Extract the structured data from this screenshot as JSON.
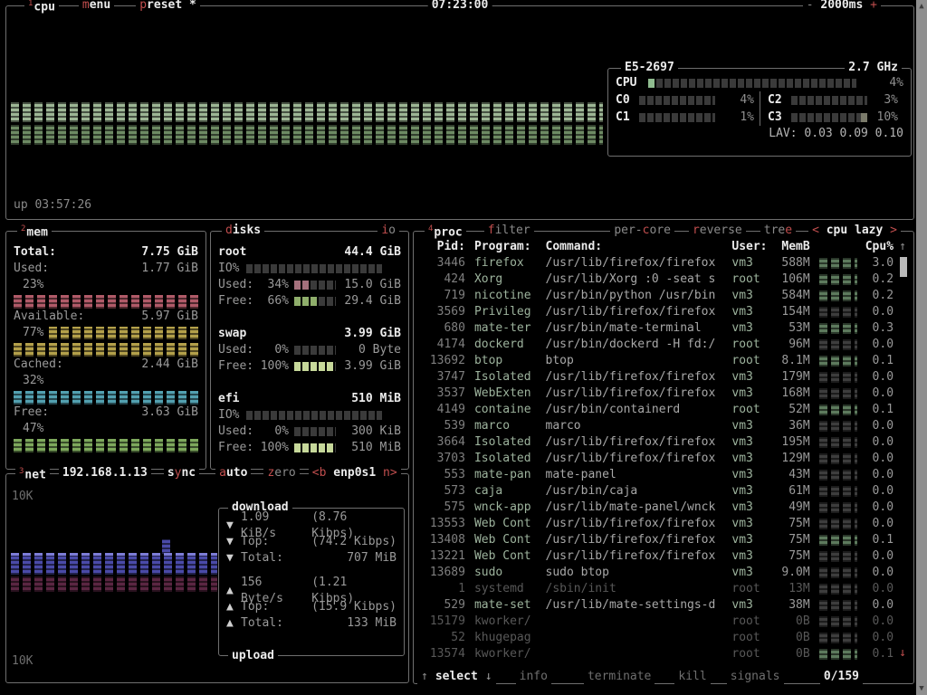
{
  "colors": {
    "bg": "#000000",
    "border": "#6f6f6f",
    "accent": "#c14e4e",
    "graph_green_light": "#9db695",
    "graph_green_dark": "#6d8a63",
    "mem_used": "#b05a68",
    "mem_available": "#b3a04a",
    "mem_cached": "#52a0b0",
    "mem_free": "#7da85c",
    "net_download": "#4a4aa8",
    "net_upload": "#5a2642",
    "disk_used": "#a4707c",
    "disk_free": "#8fae6b"
  },
  "cpu_box": {
    "tab_num": "1",
    "title": "cpu",
    "menu": {
      "hot": "m",
      "rest": "enu"
    },
    "preset": {
      "hot": "p",
      "rest": "reset",
      "star": "*"
    },
    "clock": "07:23:00",
    "interval": {
      "minus": "-",
      "value": "2000ms",
      "plus": "+"
    },
    "uptime": "up 03:57:26",
    "info": {
      "model": "E5-2697",
      "freq": "2.7 GHz",
      "total": {
        "label": "CPU",
        "pct": "4%"
      },
      "cores": [
        {
          "label": "C0",
          "pct": "4%",
          "rcol": false,
          "hl": false
        },
        {
          "label": "C2",
          "pct": "3%",
          "rcol": true,
          "hl": false
        },
        {
          "label": "C1",
          "pct": "1%",
          "rcol": false,
          "hl": false
        },
        {
          "label": "C3",
          "pct": "10%",
          "rcol": true,
          "hl": true
        }
      ],
      "lav": "LAV: 0.03 0.09 0.10"
    }
  },
  "mem_box": {
    "tab_num": "2",
    "title": "mem",
    "rows": [
      {
        "label": "Total:",
        "value": "7.75 GiB",
        "bold": true
      },
      {
        "label": "Used:",
        "value": "1.77 GiB",
        "pct": "23%",
        "color": "#b05a68",
        "inline_dots": false
      },
      {
        "label": "Available:",
        "value": "5.97 GiB",
        "pct": "77%",
        "color": "#b3a04a",
        "inline_dots": true
      },
      {
        "label": "Cached:",
        "value": "2.44 GiB",
        "pct": "32%",
        "color": "#52a0b0",
        "inline_dots": false
      },
      {
        "label": "Free:",
        "value": "3.63 GiB",
        "pct": "47%",
        "color": "#7da85c",
        "inline_dots": false
      }
    ]
  },
  "disks_box": {
    "title_hot": "d",
    "title_rest": "isks",
    "io_hot": "i",
    "io_rest": "o",
    "io_label": "IO%",
    "disks": [
      {
        "name": "root",
        "size": "44.4 GiB",
        "io": true,
        "used": {
          "label": "Used:",
          "pct": "34%",
          "value": "15.0 GiB",
          "fill": 2,
          "full": false
        },
        "free": {
          "label": "Free:",
          "pct": "66%",
          "value": "29.4 GiB",
          "fill": 3,
          "full": false
        }
      },
      {
        "name": "swap",
        "size": "3.99 GiB",
        "io": false,
        "used": {
          "label": "Used:",
          "pct": "0%",
          "value": "0 Byte",
          "fill": 0,
          "full": false
        },
        "free": {
          "label": "Free:",
          "pct": "100%",
          "value": "3.99 GiB",
          "fill": 5,
          "full": true
        }
      },
      {
        "name": "efi",
        "size": "510 MiB",
        "io": true,
        "used": {
          "label": "Used:",
          "pct": "0%",
          "value": "300 KiB",
          "fill": 0,
          "full": false
        },
        "free": {
          "label": "Free:",
          "pct": "100%",
          "value": "510 MiB",
          "fill": 5,
          "full": true
        }
      }
    ]
  },
  "net_box": {
    "tab_num": "3",
    "title": "net",
    "ip": "192.168.1.13",
    "sync": {
      "pre": "s",
      "hot": "y",
      "post": "nc"
    },
    "auto": {
      "hot": "a",
      "rest": "uto"
    },
    "zero": {
      "hot": "z",
      "rest": "ero"
    },
    "iface": {
      "left": "<b",
      "name": "enp0s1",
      "right": "n>"
    },
    "scale_top": "10K",
    "scale_bottom": "10K",
    "download": {
      "title": "download",
      "arrow": "▼",
      "speed": "1.09 KiB/s",
      "rate": "(8.76 Kibps)",
      "top_label": "Top:",
      "top": "(74.2 Kibps)",
      "total_label": "Total:",
      "total": "707 MiB"
    },
    "upload": {
      "title": "upload",
      "arrow": "▲",
      "speed": "156 Byte/s",
      "rate": "(1.21 Kibps)",
      "top_label": "Top:",
      "top": "(15.9 Kibps)",
      "total_label": "Total:",
      "total": "133 MiB"
    }
  },
  "proc_box": {
    "tab_num": "4",
    "title": "proc",
    "filter": {
      "hot": "f",
      "rest": "ilter"
    },
    "per_core": {
      "pre": "per-",
      "hot": "c",
      "post": "ore"
    },
    "reverse": {
      "hot": "r",
      "rest": "everse"
    },
    "tree": {
      "pre": "tre",
      "hot": "e"
    },
    "sort": {
      "left": "<",
      "label": "cpu lazy",
      "right": ">"
    },
    "headers": {
      "pid": "Pid:",
      "program": "Program:",
      "command": "Command:",
      "user": "User:",
      "mem": "MemB",
      "cpu": "Cpu%"
    },
    "scroll_up": "↑",
    "scroll_down": "↓",
    "rows": [
      {
        "pid": "3446",
        "program": "firefox",
        "command": "/usr/lib/firefox/firefox",
        "user": "vm3",
        "mem": "588M",
        "cpu": "3.0",
        "dim": false
      },
      {
        "pid": "424",
        "program": "Xorg",
        "command": "/usr/lib/Xorg :0 -seat s",
        "user": "root",
        "mem": "106M",
        "cpu": "0.2",
        "dim": false
      },
      {
        "pid": "719",
        "program": "nicotine",
        "command": "/usr/bin/python /usr/bin",
        "user": "vm3",
        "mem": "584M",
        "cpu": "0.2",
        "dim": false
      },
      {
        "pid": "3569",
        "program": "Privileg",
        "command": "/usr/lib/firefox/firefox",
        "user": "vm3",
        "mem": "154M",
        "cpu": "0.0",
        "dim": false
      },
      {
        "pid": "680",
        "program": "mate-ter",
        "command": "/usr/bin/mate-terminal",
        "user": "vm3",
        "mem": "53M",
        "cpu": "0.3",
        "dim": false
      },
      {
        "pid": "4174",
        "program": "dockerd",
        "command": "/usr/bin/dockerd -H fd:/",
        "user": "root",
        "mem": "96M",
        "cpu": "0.0",
        "dim": false
      },
      {
        "pid": "13692",
        "program": "btop",
        "command": "btop",
        "user": "root",
        "mem": "8.1M",
        "cpu": "0.1",
        "dim": false
      },
      {
        "pid": "3747",
        "program": "Isolated",
        "command": "/usr/lib/firefox/firefox",
        "user": "vm3",
        "mem": "179M",
        "cpu": "0.0",
        "dim": false
      },
      {
        "pid": "3537",
        "program": "WebExten",
        "command": "/usr/lib/firefox/firefox",
        "user": "vm3",
        "mem": "168M",
        "cpu": "0.0",
        "dim": false
      },
      {
        "pid": "4149",
        "program": "containe",
        "command": "/usr/bin/containerd",
        "user": "root",
        "mem": "52M",
        "cpu": "0.1",
        "dim": false
      },
      {
        "pid": "539",
        "program": "marco",
        "command": "marco",
        "user": "vm3",
        "mem": "36M",
        "cpu": "0.0",
        "dim": false
      },
      {
        "pid": "3664",
        "program": "Isolated",
        "command": "/usr/lib/firefox/firefox",
        "user": "vm3",
        "mem": "195M",
        "cpu": "0.0",
        "dim": false
      },
      {
        "pid": "3703",
        "program": "Isolated",
        "command": "/usr/lib/firefox/firefox",
        "user": "vm3",
        "mem": "129M",
        "cpu": "0.0",
        "dim": false
      },
      {
        "pid": "553",
        "program": "mate-pan",
        "command": "mate-panel",
        "user": "vm3",
        "mem": "43M",
        "cpu": "0.0",
        "dim": false
      },
      {
        "pid": "573",
        "program": "caja",
        "command": "/usr/bin/caja",
        "user": "vm3",
        "mem": "61M",
        "cpu": "0.0",
        "dim": false
      },
      {
        "pid": "575",
        "program": "wnck-app",
        "command": "/usr/lib/mate-panel/wnck",
        "user": "vm3",
        "mem": "49M",
        "cpu": "0.0",
        "dim": false
      },
      {
        "pid": "13553",
        "program": "Web Cont",
        "command": "/usr/lib/firefox/firefox",
        "user": "vm3",
        "mem": "75M",
        "cpu": "0.0",
        "dim": false
      },
      {
        "pid": "13408",
        "program": "Web Cont",
        "command": "/usr/lib/firefox/firefox",
        "user": "vm3",
        "mem": "75M",
        "cpu": "0.1",
        "dim": false
      },
      {
        "pid": "13221",
        "program": "Web Cont",
        "command": "/usr/lib/firefox/firefox",
        "user": "vm3",
        "mem": "75M",
        "cpu": "0.0",
        "dim": false
      },
      {
        "pid": "13689",
        "program": "sudo",
        "command": "sudo btop",
        "user": "vm3",
        "mem": "9.0M",
        "cpu": "0.0",
        "dim": false
      },
      {
        "pid": "1",
        "program": "systemd",
        "command": "/sbin/init",
        "user": "root",
        "mem": "13M",
        "cpu": "0.0",
        "dim": true
      },
      {
        "pid": "529",
        "program": "mate-set",
        "command": "/usr/lib/mate-settings-d",
        "user": "vm3",
        "mem": "38M",
        "cpu": "0.0",
        "dim": false
      },
      {
        "pid": "15179",
        "program": "kworker/",
        "command": "",
        "user": "root",
        "mem": "0B",
        "cpu": "0.0",
        "dim": true
      },
      {
        "pid": "52",
        "program": "khugepag",
        "command": "",
        "user": "root",
        "mem": "0B",
        "cpu": "0.0",
        "dim": true
      },
      {
        "pid": "13574",
        "program": "kworker/",
        "command": "",
        "user": "root",
        "mem": "0B",
        "cpu": "0.1",
        "dim": true
      }
    ],
    "footer": {
      "up": "↑",
      "select": "select",
      "down": "↓",
      "info": "info",
      "terminate": "terminate",
      "kill": "kill",
      "signals": "signals",
      "count": "0/159"
    }
  }
}
